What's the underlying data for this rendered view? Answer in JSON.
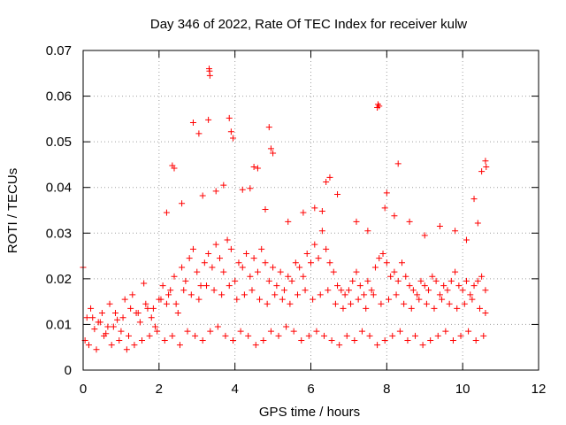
{
  "chart_data": {
    "type": "scatter",
    "title": "Day 346 of 2022, Rate Of TEC Index for receiver kulw",
    "xlabel": "GPS time / hours",
    "ylabel": "ROTI / TECUs",
    "xlim": [
      0,
      12
    ],
    "ylim": [
      0,
      0.07
    ],
    "x_ticks": [
      0,
      2,
      4,
      6,
      8,
      10,
      12
    ],
    "x_tick_labels": [
      "0",
      "2",
      "4",
      "6",
      "8",
      "10",
      "12"
    ],
    "y_ticks": [
      0,
      0.01,
      0.02,
      0.03,
      0.04,
      0.05,
      0.06,
      0.07
    ],
    "y_tick_labels": [
      "0",
      "0.01",
      "0.02",
      "0.03",
      "0.04",
      "0.05",
      "0.06",
      "0.07"
    ],
    "grid": true,
    "marker": "+",
    "series": [
      {
        "name": "ROTI",
        "color": "#ff0000",
        "x": [
          0.0,
          0.1,
          0.2,
          0.3,
          0.4,
          0.5,
          0.6,
          0.7,
          0.8,
          0.9,
          1.0,
          1.1,
          1.2,
          1.3,
          1.4,
          1.5,
          1.6,
          1.7,
          1.8,
          1.9,
          2.0,
          2.1,
          2.2,
          2.3,
          2.4,
          2.5,
          2.6,
          2.7,
          2.8,
          2.9,
          3.0,
          3.1,
          3.2,
          3.3,
          3.4,
          3.5,
          3.6,
          3.7,
          3.8,
          3.9,
          4.0,
          4.1,
          4.2,
          4.3,
          4.4,
          4.5,
          4.6,
          4.7,
          4.8,
          4.9,
          5.0,
          5.1,
          5.2,
          5.3,
          5.4,
          5.5,
          5.6,
          5.7,
          5.8,
          5.9,
          6.0,
          6.1,
          6.2,
          6.3,
          6.4,
          6.5,
          6.6,
          6.7,
          6.8,
          6.9,
          7.0,
          7.1,
          7.2,
          7.3,
          7.4,
          7.5,
          7.6,
          7.7,
          7.8,
          7.9,
          8.0,
          8.1,
          8.2,
          8.3,
          8.4,
          8.5,
          8.6,
          8.7,
          8.8,
          8.9,
          9.0,
          9.1,
          9.2,
          9.3,
          9.4,
          9.5,
          9.6,
          9.7,
          9.8,
          9.9,
          10.0,
          10.1,
          10.2,
          10.3,
          10.4,
          10.5,
          10.6,
          0.05,
          0.15,
          0.35,
          0.55,
          0.75,
          0.95,
          1.15,
          1.35,
          1.55,
          1.75,
          1.95,
          2.15,
          2.35,
          2.55,
          2.75,
          2.95,
          3.15,
          3.35,
          3.55,
          3.75,
          3.95,
          4.15,
          4.35,
          4.55,
          4.75,
          4.95,
          5.15,
          5.35,
          5.55,
          5.75,
          5.95,
          6.15,
          6.35,
          6.55,
          6.75,
          6.95,
          7.15,
          7.35,
          7.55,
          7.75,
          7.95,
          8.15,
          8.35,
          8.55,
          8.75,
          8.95,
          9.15,
          9.35,
          9.55,
          9.75,
          9.95,
          10.15,
          10.35,
          10.55,
          0.25,
          0.45,
          0.65,
          0.85,
          1.05,
          1.25,
          1.45,
          1.65,
          1.85,
          2.05,
          2.25,
          2.45,
          2.65,
          2.85,
          3.05,
          3.25,
          3.45,
          3.65,
          3.85,
          4.05,
          4.25,
          4.45,
          4.65,
          4.85,
          5.05,
          5.25,
          5.45,
          5.65,
          5.85,
          6.05,
          6.25,
          6.45,
          6.65,
          6.85,
          7.05,
          7.25,
          7.45,
          7.65,
          7.85,
          8.05,
          8.25,
          8.45,
          8.65,
          8.85,
          9.05,
          9.25,
          9.45,
          9.65,
          9.85,
          10.05,
          10.25,
          10.45,
          10.6,
          3.32,
          3.33,
          3.34,
          3.3,
          3.05,
          2.9,
          2.35,
          2.4,
          3.85,
          3.9,
          3.95,
          4.9,
          4.95,
          4.5,
          4.6,
          5.0,
          6.4,
          6.5,
          7.75,
          7.77,
          7.8,
          8.3,
          8.0,
          7.95,
          10.6,
          10.62,
          10.3,
          10.5,
          2.2,
          2.6,
          3.15,
          3.5,
          3.7,
          4.2,
          4.4,
          4.8,
          5.4,
          5.8,
          6.1,
          6.3,
          6.7,
          7.2,
          7.5,
          8.2,
          8.6,
          9.0,
          9.4,
          9.8,
          10.1,
          10.4
        ],
        "y": [
          0.0225,
          0.0115,
          0.0135,
          0.009,
          0.0105,
          0.0125,
          0.008,
          0.0145,
          0.0095,
          0.011,
          0.0085,
          0.0155,
          0.0075,
          0.0165,
          0.0125,
          0.0105,
          0.019,
          0.0135,
          0.0115,
          0.0095,
          0.0155,
          0.0185,
          0.0145,
          0.0175,
          0.0205,
          0.0125,
          0.0225,
          0.0195,
          0.0245,
          0.0265,
          0.0215,
          0.0185,
          0.0235,
          0.0255,
          0.0225,
          0.0275,
          0.0245,
          0.0215,
          0.0285,
          0.0265,
          0.0195,
          0.0235,
          0.0225,
          0.0255,
          0.0205,
          0.0245,
          0.0215,
          0.0265,
          0.0235,
          0.0195,
          0.0225,
          0.0185,
          0.0215,
          0.0175,
          0.0205,
          0.0195,
          0.0235,
          0.0225,
          0.0205,
          0.0255,
          0.0235,
          0.0275,
          0.0245,
          0.0305,
          0.0265,
          0.0235,
          0.0215,
          0.0185,
          0.0175,
          0.0165,
          0.0175,
          0.0195,
          0.0215,
          0.0185,
          0.0165,
          0.0195,
          0.0175,
          0.0225,
          0.0245,
          0.0255,
          0.0235,
          0.0205,
          0.0215,
          0.0195,
          0.0235,
          0.0205,
          0.0185,
          0.0175,
          0.0165,
          0.0195,
          0.0185,
          0.0175,
          0.0205,
          0.0195,
          0.0165,
          0.0185,
          0.0175,
          0.0195,
          0.0215,
          0.0185,
          0.0175,
          0.0195,
          0.0165,
          0.0185,
          0.0195,
          0.0205,
          0.0175,
          0.0065,
          0.0055,
          0.0045,
          0.0075,
          0.0055,
          0.0065,
          0.0045,
          0.0055,
          0.0065,
          0.0075,
          0.0085,
          0.0065,
          0.0075,
          0.0055,
          0.0085,
          0.0075,
          0.0065,
          0.0085,
          0.0095,
          0.0075,
          0.0065,
          0.0085,
          0.0075,
          0.0055,
          0.0065,
          0.0085,
          0.0075,
          0.0095,
          0.0085,
          0.0065,
          0.0075,
          0.0085,
          0.0075,
          0.0065,
          0.0055,
          0.0075,
          0.0065,
          0.0085,
          0.0075,
          0.0055,
          0.0065,
          0.0075,
          0.0085,
          0.0065,
          0.0075,
          0.0055,
          0.0065,
          0.0075,
          0.0085,
          0.0065,
          0.0075,
          0.0085,
          0.0065,
          0.0075,
          0.0115,
          0.0105,
          0.0095,
          0.0125,
          0.0115,
          0.0135,
          0.0125,
          0.0145,
          0.0135,
          0.0155,
          0.0165,
          0.0145,
          0.0175,
          0.0165,
          0.0155,
          0.0185,
          0.0175,
          0.0165,
          0.0185,
          0.0155,
          0.0165,
          0.0175,
          0.0155,
          0.0145,
          0.0165,
          0.0155,
          0.0145,
          0.0165,
          0.0175,
          0.0155,
          0.0165,
          0.0175,
          0.0145,
          0.0135,
          0.0145,
          0.0155,
          0.0135,
          0.0165,
          0.0145,
          0.0155,
          0.0165,
          0.0145,
          0.0135,
          0.0155,
          0.0145,
          0.0135,
          0.0155,
          0.0145,
          0.0135,
          0.0145,
          0.0155,
          0.0135,
          0.0125,
          0.066,
          0.0655,
          0.0645,
          0.0548,
          0.0518,
          0.0542,
          0.0448,
          0.0442,
          0.0552,
          0.0522,
          0.0508,
          0.0532,
          0.0485,
          0.0445,
          0.0442,
          0.0475,
          0.0412,
          0.0422,
          0.0575,
          0.0582,
          0.0578,
          0.0452,
          0.0388,
          0.0355,
          0.0458,
          0.0445,
          0.0375,
          0.0435,
          0.0345,
          0.0365,
          0.0382,
          0.0392,
          0.0405,
          0.0395,
          0.0398,
          0.0352,
          0.0325,
          0.0345,
          0.0355,
          0.0348,
          0.0385,
          0.0325,
          0.0305,
          0.0338,
          0.0325,
          0.0295,
          0.0315,
          0.0305,
          0.0285,
          0.0322
        ]
      }
    ]
  }
}
